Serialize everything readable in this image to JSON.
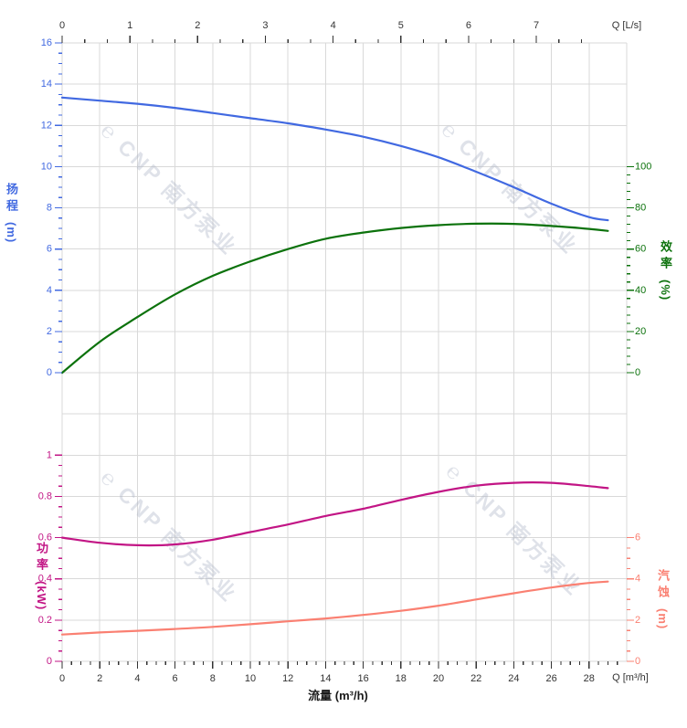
{
  "watermark": {
    "logo_icon": "cnp-logo",
    "logo_glyph": "℮",
    "text": "CNP 南方泵业",
    "color": "#aab2c6"
  },
  "chart_data": {
    "type": "line",
    "grid": true,
    "x_axis_bottom": {
      "title": "流量 (m³/h)",
      "unit_label": "Q [m³/h]",
      "range": [
        0,
        30
      ],
      "ticks": [
        0,
        2,
        4,
        6,
        8,
        10,
        12,
        14,
        16,
        18,
        20,
        22,
        24,
        26,
        28
      ],
      "minor_step": 0.5,
      "color": "#333333"
    },
    "x_axis_top": {
      "unit_label": "Q [L/s]",
      "range": [
        0,
        8.33
      ],
      "ticks": [
        0,
        1,
        2,
        3,
        4,
        5,
        6,
        7
      ],
      "minor_step": 0.3333,
      "color": "#333333"
    },
    "y_axes": {
      "head": {
        "title": "扬程",
        "unit": "(m)",
        "side": "left",
        "color": "#4169e1",
        "range": [
          0,
          16
        ],
        "ticks": [
          16,
          14,
          12,
          10,
          8,
          6,
          4,
          2,
          0
        ],
        "minor_step": 0.5
      },
      "efficiency": {
        "title": "效率",
        "unit": "(%)",
        "side": "right",
        "color": "#0c720c",
        "range": [
          0,
          100
        ],
        "ticks": [
          100,
          80,
          60,
          40,
          20,
          0
        ],
        "minor_step": 4
      },
      "power": {
        "title": "功率",
        "unit": "(kW)",
        "side": "left",
        "color": "#c21585",
        "range": [
          0,
          1
        ],
        "ticks": [
          1,
          0.8,
          0.6,
          0.4,
          0.2,
          0
        ],
        "minor_step": 0.05
      },
      "npsh": {
        "title": "汽蚀",
        "unit": "(m)",
        "side": "right",
        "color": "#fa8072",
        "range": [
          0,
          6
        ],
        "ticks": [
          6,
          4,
          2,
          0
        ],
        "minor_step": 0.5
      }
    },
    "series": [
      {
        "id": "head",
        "name": "扬程",
        "axis": "head",
        "color": "#4169e1",
        "x": [
          0,
          2,
          4,
          6,
          8,
          10,
          12,
          14,
          16,
          18,
          20,
          22,
          24,
          26,
          28,
          29
        ],
        "y": [
          13.35,
          13.2,
          13.05,
          12.85,
          12.6,
          12.35,
          12.1,
          11.8,
          11.45,
          11.0,
          10.45,
          9.75,
          9.0,
          8.2,
          7.55,
          7.4
        ]
      },
      {
        "id": "efficiency",
        "name": "效率",
        "axis": "efficiency",
        "color": "#0c720c",
        "x": [
          0,
          2,
          4,
          6,
          8,
          10,
          12,
          14,
          16,
          18,
          20,
          22,
          24,
          26,
          28,
          29
        ],
        "y": [
          0,
          15,
          27,
          38,
          47,
          54,
          60,
          65,
          68,
          70.2,
          71.6,
          72.3,
          72.2,
          71.2,
          69.8,
          68.8
        ]
      },
      {
        "id": "power",
        "name": "功率",
        "axis": "power",
        "color": "#c21585",
        "x": [
          0,
          2,
          4,
          6,
          8,
          10,
          12,
          14,
          16,
          18,
          20,
          22,
          24,
          26,
          28,
          29
        ],
        "y": [
          0.6,
          0.575,
          0.563,
          0.567,
          0.59,
          0.627,
          0.664,
          0.705,
          0.74,
          0.783,
          0.822,
          0.852,
          0.866,
          0.866,
          0.85,
          0.84
        ]
      },
      {
        "id": "npsh",
        "name": "汽蚀",
        "axis": "npsh",
        "color": "#fa8072",
        "x": [
          0,
          2,
          4,
          6,
          8,
          10,
          12,
          14,
          16,
          18,
          20,
          22,
          24,
          26,
          28,
          29
        ],
        "y": [
          1.3,
          1.4,
          1.48,
          1.57,
          1.67,
          1.8,
          1.94,
          2.08,
          2.25,
          2.45,
          2.7,
          3.0,
          3.3,
          3.58,
          3.8,
          3.87
        ]
      }
    ]
  }
}
